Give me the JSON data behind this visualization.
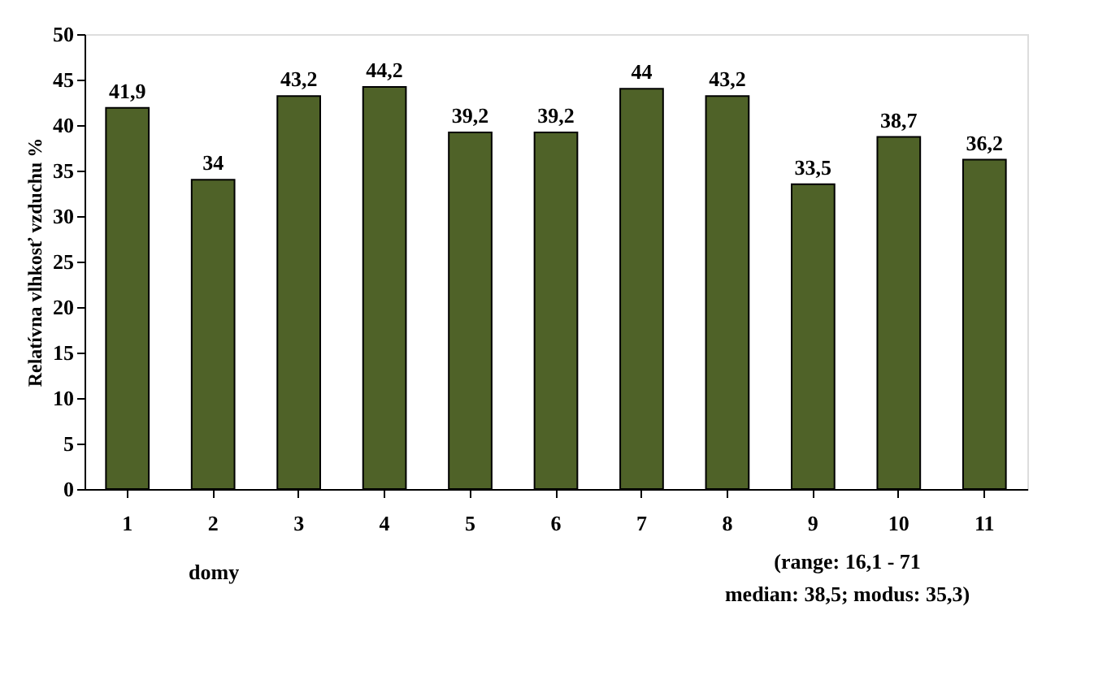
{
  "chart_data": {
    "type": "bar",
    "xlabel": "domy",
    "ylabel": "Relatívna vlhkosť vzduchu %",
    "categories": [
      "1",
      "2",
      "3",
      "4",
      "5",
      "6",
      "7",
      "8",
      "9",
      "10",
      "11"
    ],
    "values": [
      41.9,
      34,
      43.2,
      44.2,
      39.2,
      39.2,
      44,
      43.2,
      33.5,
      38.7,
      36.2
    ],
    "value_labels": [
      "41,9",
      "34",
      "43,2",
      "44,2",
      "39,2",
      "39,2",
      "44",
      "43,2",
      "33,5",
      "38,7",
      "36,2"
    ],
    "color": "#4f6228",
    "ylim": [
      0,
      50
    ],
    "yticks": [
      0,
      5,
      10,
      15,
      20,
      25,
      30,
      35,
      40,
      45,
      50
    ],
    "grid": false,
    "annotations": [
      "(range: 16,1 - 71",
      "median: 38,5; modus: 35,3)"
    ]
  }
}
